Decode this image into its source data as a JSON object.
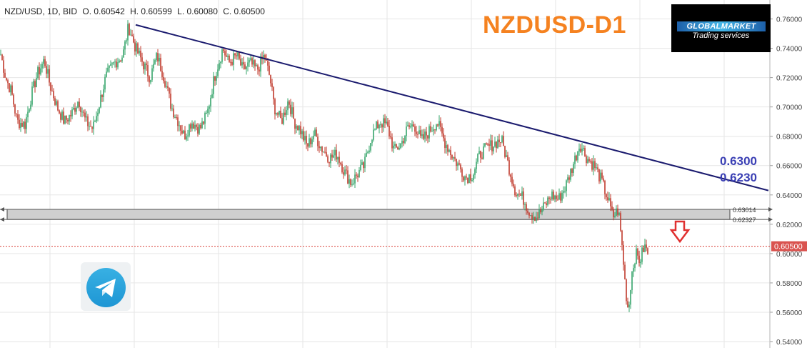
{
  "header": {
    "symbol": "NZD/USD, 1D, BID",
    "open": "O. 0.60542",
    "high": "H. 0.60599",
    "low": "L. 0.60080",
    "close": "C. 0.60500"
  },
  "chart_title": "NZDUSD-D1",
  "logo": {
    "name": "GLOBALMARKET",
    "tagline": "Trading services"
  },
  "zone_labels": {
    "upper": "0.63014",
    "lower": "0.62327"
  },
  "annotations": {
    "level_1": "0.6300",
    "level_2": "0.6230"
  },
  "current_price_label": "0.60500",
  "icons": {
    "telegram": "telegram-icon",
    "arrow": "down-arrow-icon"
  },
  "colors": {
    "up": "#35a46a",
    "down": "#c0392b",
    "trendline": "#1a1a6e",
    "title": "#f58220",
    "zone_fill": "#cfcfcf",
    "price_line": "#d9413a",
    "annotation": "#3a3fb4"
  },
  "chart_data": {
    "type": "line",
    "series": [
      {
        "style": "candlestick",
        "x": [
          0,
          8,
          16,
          24,
          35,
          45,
          52,
          62,
          70,
          80,
          90,
          100,
          110,
          120,
          130,
          138,
          148,
          160,
          172,
          180,
          190,
          200,
          210,
          220,
          230,
          240,
          250,
          258,
          268,
          280,
          290,
          300,
          312,
          320,
          332,
          340,
          350,
          360,
          370,
          378,
          384,
          394,
          404,
          412,
          420,
          430,
          440,
          450,
          462,
          472,
          482,
          492,
          500,
          510,
          520,
          532,
          542,
          552,
          562,
          570,
          580,
          590,
          602,
          612,
          622,
          632,
          642,
          652,
          662,
          672,
          682,
          692,
          702,
          712,
          722,
          732,
          742,
          752,
          762,
          772,
          782,
          792,
          802,
          812,
          822,
          832,
          842,
          852,
          858,
          866,
          872,
          876,
          880,
          884,
          890,
          896,
          902,
          908
        ],
        "y": [
          0.738,
          0.72,
          0.71,
          0.69,
          0.688,
          0.71,
          0.722,
          0.732,
          0.715,
          0.7,
          0.69,
          0.695,
          0.705,
          0.69,
          0.685,
          0.7,
          0.72,
          0.73,
          0.735,
          0.755,
          0.74,
          0.73,
          0.72,
          0.735,
          0.72,
          0.7,
          0.69,
          0.68,
          0.69,
          0.685,
          0.695,
          0.72,
          0.74,
          0.73,
          0.735,
          0.725,
          0.73,
          0.725,
          0.735,
          0.72,
          0.7,
          0.69,
          0.705,
          0.69,
          0.685,
          0.673,
          0.682,
          0.672,
          0.665,
          0.668,
          0.656,
          0.648,
          0.654,
          0.66,
          0.68,
          0.69,
          0.687,
          0.67,
          0.675,
          0.685,
          0.688,
          0.677,
          0.684,
          0.69,
          0.677,
          0.668,
          0.66,
          0.652,
          0.654,
          0.668,
          0.672,
          0.675,
          0.678,
          0.66,
          0.642,
          0.638,
          0.628,
          0.625,
          0.632,
          0.64,
          0.637,
          0.646,
          0.66,
          0.675,
          0.665,
          0.66,
          0.65,
          0.636,
          0.625,
          0.63,
          0.6,
          0.575,
          0.56,
          0.585,
          0.6,
          0.595,
          0.605,
          0.6
        ]
      }
    ],
    "trendline": {
      "x": [
        190,
        1076
      ],
      "y": [
        0.756,
        0.643
      ]
    },
    "zone": {
      "upper": 0.63014,
      "lower": 0.62327
    },
    "current_price": 0.605,
    "arrow_x": 952,
    "xlim": [
      0,
      1078
    ],
    "ylim": [
      0.54,
      0.77
    ],
    "y_ticks": [
      "0.76000",
      "0.74000",
      "0.72000",
      "0.70000",
      "0.68000",
      "0.66000",
      "0.64000",
      "0.62000",
      "0.60000",
      "0.58000",
      "0.56000",
      "0.54000"
    ],
    "grid": true
  }
}
